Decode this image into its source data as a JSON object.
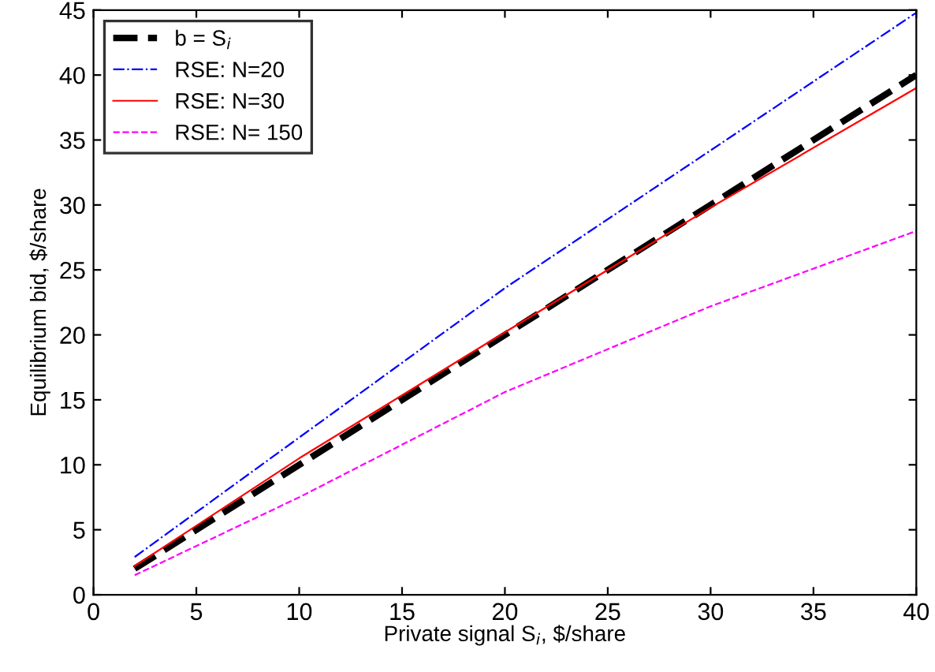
{
  "chart_data": {
    "type": "line",
    "xlabel": "Private signal S$_{i}$, $/share",
    "ylabel": "Equilibrium bid, $/share",
    "xlim": [
      0,
      40
    ],
    "ylim": [
      0,
      45
    ],
    "xticks": [
      0,
      5,
      10,
      15,
      20,
      25,
      30,
      35,
      40
    ],
    "yticks": [
      0,
      5,
      10,
      15,
      20,
      25,
      30,
      35,
      40,
      45
    ],
    "grid": false,
    "legend": "top left",
    "marker": "none",
    "series": [
      {
        "name": "b = S$_{i}$",
        "color": "#000000",
        "line_style": "dashed",
        "x": [
          2,
          40
        ],
        "values": [
          2,
          40
        ]
      },
      {
        "name": "RSE: N=20",
        "color": "#0000ff",
        "line_style": "dashdot",
        "x": [
          2,
          20,
          40
        ],
        "values": [
          2.9,
          23.6,
          44.8
        ]
      },
      {
        "name": "RSE: N=30",
        "color": "#ff0000",
        "line_style": "solid",
        "x": [
          2,
          10,
          20,
          30,
          40
        ],
        "values": [
          2.2,
          10.5,
          20.2,
          29.8,
          39
        ]
      },
      {
        "name": "RSE: N= 150",
        "color": "#ff00ff",
        "line_style": "dashed",
        "x": [
          2,
          10,
          20,
          30,
          40
        ],
        "values": [
          1.5,
          7.5,
          15.6,
          22.2,
          28
        ]
      }
    ]
  }
}
